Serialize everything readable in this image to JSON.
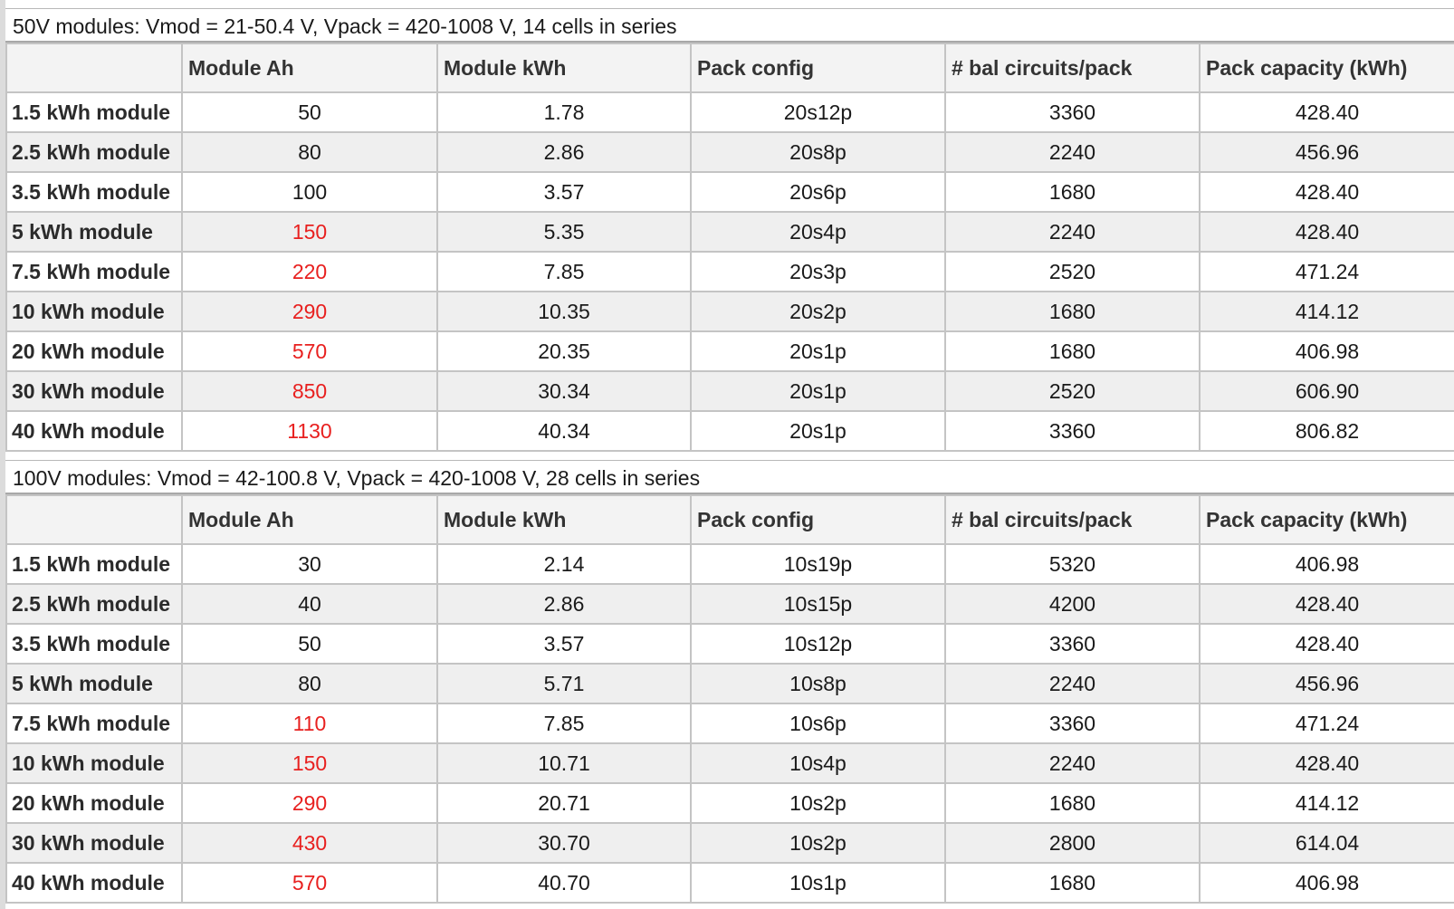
{
  "headers": [
    "",
    "Module Ah",
    "Module kWh",
    "Pack config",
    "# bal circuits/pack",
    "Pack capacity (kWh)"
  ],
  "tables": [
    {
      "caption": "50V modules: Vmod = 21-50.4 V, Vpack = 420-1008 V, 14 cells in series",
      "rows": [
        {
          "label": "1.5 kWh module",
          "ah": "50",
          "ah_highlight": false,
          "kwh": "1.78",
          "config": "20s12p",
          "bal": "3360",
          "capacity": "428.40"
        },
        {
          "label": "2.5 kWh module",
          "ah": "80",
          "ah_highlight": false,
          "kwh": "2.86",
          "config": "20s8p",
          "bal": "2240",
          "capacity": "456.96"
        },
        {
          "label": "3.5 kWh module",
          "ah": "100",
          "ah_highlight": false,
          "kwh": "3.57",
          "config": "20s6p",
          "bal": "1680",
          "capacity": "428.40"
        },
        {
          "label": "5 kWh module",
          "ah": "150",
          "ah_highlight": true,
          "kwh": "5.35",
          "config": "20s4p",
          "bal": "2240",
          "capacity": "428.40"
        },
        {
          "label": "7.5 kWh module",
          "ah": "220",
          "ah_highlight": true,
          "kwh": "7.85",
          "config": "20s3p",
          "bal": "2520",
          "capacity": "471.24"
        },
        {
          "label": "10 kWh module",
          "ah": "290",
          "ah_highlight": true,
          "kwh": "10.35",
          "config": "20s2p",
          "bal": "1680",
          "capacity": "414.12"
        },
        {
          "label": "20 kWh module",
          "ah": "570",
          "ah_highlight": true,
          "kwh": "20.35",
          "config": "20s1p",
          "bal": "1680",
          "capacity": "406.98"
        },
        {
          "label": "30 kWh module",
          "ah": "850",
          "ah_highlight": true,
          "kwh": "30.34",
          "config": "20s1p",
          "bal": "2520",
          "capacity": "606.90"
        },
        {
          "label": "40 kWh module",
          "ah": "1130",
          "ah_highlight": true,
          "kwh": "40.34",
          "config": "20s1p",
          "bal": "3360",
          "capacity": "806.82"
        }
      ]
    },
    {
      "caption": "100V modules: Vmod = 42-100.8 V, Vpack = 420-1008 V, 28 cells in series",
      "rows": [
        {
          "label": "1.5 kWh module",
          "ah": "30",
          "ah_highlight": false,
          "kwh": "2.14",
          "config": "10s19p",
          "bal": "5320",
          "capacity": "406.98"
        },
        {
          "label": "2.5 kWh module",
          "ah": "40",
          "ah_highlight": false,
          "kwh": "2.86",
          "config": "10s15p",
          "bal": "4200",
          "capacity": "428.40"
        },
        {
          "label": "3.5 kWh module",
          "ah": "50",
          "ah_highlight": false,
          "kwh": "3.57",
          "config": "10s12p",
          "bal": "3360",
          "capacity": "428.40"
        },
        {
          "label": "5 kWh module",
          "ah": "80",
          "ah_highlight": false,
          "kwh": "5.71",
          "config": "10s8p",
          "bal": "2240",
          "capacity": "456.96"
        },
        {
          "label": "7.5 kWh module",
          "ah": "110",
          "ah_highlight": true,
          "kwh": "7.85",
          "config": "10s6p",
          "bal": "3360",
          "capacity": "471.24"
        },
        {
          "label": "10 kWh module",
          "ah": "150",
          "ah_highlight": true,
          "kwh": "10.71",
          "config": "10s4p",
          "bal": "2240",
          "capacity": "428.40"
        },
        {
          "label": "20 kWh module",
          "ah": "290",
          "ah_highlight": true,
          "kwh": "20.71",
          "config": "10s2p",
          "bal": "1680",
          "capacity": "414.12"
        },
        {
          "label": "30 kWh module",
          "ah": "430",
          "ah_highlight": true,
          "kwh": "30.70",
          "config": "10s2p",
          "bal": "2800",
          "capacity": "614.04"
        },
        {
          "label": "40 kWh module",
          "ah": "570",
          "ah_highlight": true,
          "kwh": "40.70",
          "config": "10s1p",
          "bal": "1680",
          "capacity": "406.98"
        }
      ]
    }
  ],
  "colors": {
    "highlight": "#e8201f",
    "header_bg": "#f3f3f3",
    "stripe_bg": "#efefef",
    "border": "#c4c4c4"
  }
}
